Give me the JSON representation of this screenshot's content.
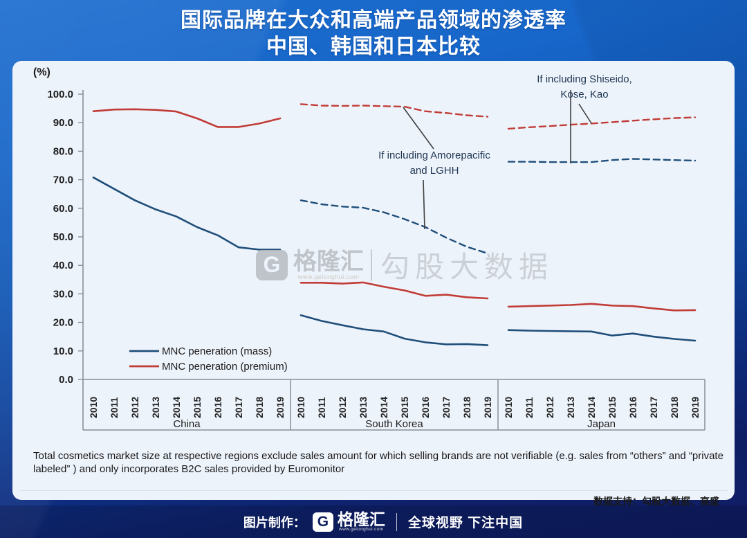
{
  "title": {
    "line1": "国际品牌在大众和高端产品领域的渗透率",
    "line2": "中国、韩国和日本比较"
  },
  "chart_data": {
    "type": "line",
    "unit_label": "(%)",
    "ylim": [
      0,
      100
    ],
    "ytick_step": 10,
    "grid": false,
    "legend_position": "bottom-left-inside",
    "x_years": [
      "2010",
      "2011",
      "2012",
      "2013",
      "2014",
      "2015",
      "2016",
      "2017",
      "2018",
      "2019"
    ],
    "colors": {
      "mass": "#1f4e79",
      "premium": "#c13c36"
    },
    "legend": [
      {
        "label": "MNC peneration (mass)",
        "color_key": "mass"
      },
      {
        "label": "MNC peneration (premium)",
        "color_key": "premium"
      }
    ],
    "regions": [
      {
        "name": "China",
        "series": [
          {
            "id": "china-mass",
            "legend": "MNC peneration (mass)",
            "color_key": "mass",
            "dash": false,
            "values": [
              70.8,
              66.8,
              62.8,
              59.6,
              57.1,
              53.4,
              50.5,
              46.3,
              45.5,
              45.5
            ]
          },
          {
            "id": "china-premium",
            "legend": "MNC peneration (premium)",
            "color_key": "premium",
            "dash": false,
            "values": [
              94.0,
              94.6,
              94.7,
              94.5,
              93.9,
              91.5,
              88.5,
              88.5,
              89.7,
              91.5
            ]
          }
        ]
      },
      {
        "name": "South Korea",
        "series": [
          {
            "id": "korea-mass",
            "legend": "MNC peneration (mass)",
            "color_key": "mass",
            "dash": false,
            "values": [
              22.5,
              20.5,
              19.0,
              17.6,
              16.8,
              14.3,
              13.0,
              12.3,
              12.4,
              12.0
            ]
          },
          {
            "id": "korea-premium",
            "legend": "MNC peneration (premium)",
            "color_key": "premium",
            "dash": false,
            "values": [
              33.9,
              33.9,
              33.6,
              34.0,
              32.5,
              31.2,
              29.3,
              29.7,
              28.8,
              28.4
            ]
          },
          {
            "id": "korea-mass-incl-local",
            "legend": "If including Amorepacific and LGHH",
            "color_key": "mass",
            "dash": true,
            "values": [
              62.8,
              61.4,
              60.6,
              60.2,
              58.6,
              56.2,
              53.4,
              49.7,
              46.5,
              44.2
            ]
          },
          {
            "id": "korea-premium-incl-local",
            "legend": "If including Amorepacific and LGHH",
            "color_key": "premium",
            "dash": true,
            "values": [
              96.5,
              96.0,
              95.9,
              96.0,
              95.8,
              95.6,
              94.0,
              93.4,
              92.6,
              92.1
            ]
          }
        ]
      },
      {
        "name": "Japan",
        "series": [
          {
            "id": "japan-mass",
            "legend": "MNC peneration (mass)",
            "color_key": "mass",
            "dash": false,
            "values": [
              17.3,
              17.1,
              17.0,
              16.9,
              16.8,
              15.4,
              16.1,
              15.0,
              14.2,
              13.6
            ]
          },
          {
            "id": "japan-premium",
            "legend": "MNC peneration (premium)",
            "color_key": "premium",
            "dash": false,
            "values": [
              25.5,
              25.7,
              25.9,
              26.1,
              26.5,
              25.9,
              25.7,
              24.9,
              24.2,
              24.3
            ]
          },
          {
            "id": "japan-mass-incl-local",
            "legend": "If including Shiseido, Kose, Kao",
            "color_key": "mass",
            "dash": true,
            "values": [
              76.3,
              76.3,
              76.2,
              76.2,
              76.2,
              76.9,
              77.3,
              77.1,
              76.9,
              76.7
            ]
          },
          {
            "id": "japan-premium-incl-local",
            "legend": "If including Shiseido, Kose, Kao",
            "color_key": "premium",
            "dash": true,
            "values": [
              87.9,
              88.4,
              88.8,
              89.3,
              89.7,
              90.2,
              90.7,
              91.2,
              91.6,
              91.9
            ]
          }
        ]
      }
    ],
    "annotations": [
      {
        "id": "amorepacific-note",
        "line1": "If including Amorepacific",
        "line2": "and LGHH"
      },
      {
        "id": "shiseido-note",
        "line1": "If including Shiseido,",
        "line2": "Kose, Kao"
      }
    ]
  },
  "footnote": "Total cosmetics market size at respective regions exclude sales amount for which selling brands are not verifiable (e.g. sales from “others” and “private labeled” ) and only incorporates B2C sales provided by Euromonitor",
  "credit": "数据支持：勾股大数据、高盛",
  "watermark": {
    "logo_letter": "G",
    "brand": "格隆汇",
    "url": "www.gelonghui.com",
    "big_text": "勾股大数据"
  },
  "footer": {
    "made_by": "图片制作：",
    "logo_letter": "G",
    "brand": "格隆汇",
    "url": "www.gelonghui.com",
    "slogan": "全球视野 下注中国"
  }
}
